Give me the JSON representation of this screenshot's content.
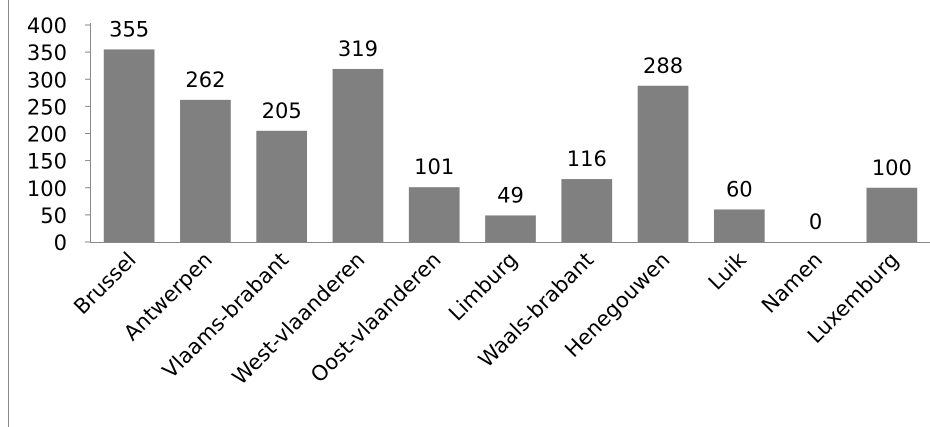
{
  "chart_data": {
    "type": "bar",
    "title": "",
    "xlabel": "",
    "ylabel": "",
    "ylim": [
      0,
      400
    ],
    "yticks": [
      0,
      50,
      100,
      150,
      200,
      250,
      300,
      350,
      400
    ],
    "grid": false,
    "legend": "none",
    "bar_color": "#808080",
    "categories": [
      "Brussel",
      "Antwerpen",
      "Vlaams-brabant",
      "West-vlaanderen",
      "Oost-vlaanderen",
      "Limburg",
      "Waals-brabant",
      "Henegouwen",
      "Luik",
      "Namen",
      "Luxemburg"
    ],
    "values": [
      355,
      262,
      205,
      319,
      101,
      49,
      116,
      288,
      60,
      0,
      100
    ]
  }
}
